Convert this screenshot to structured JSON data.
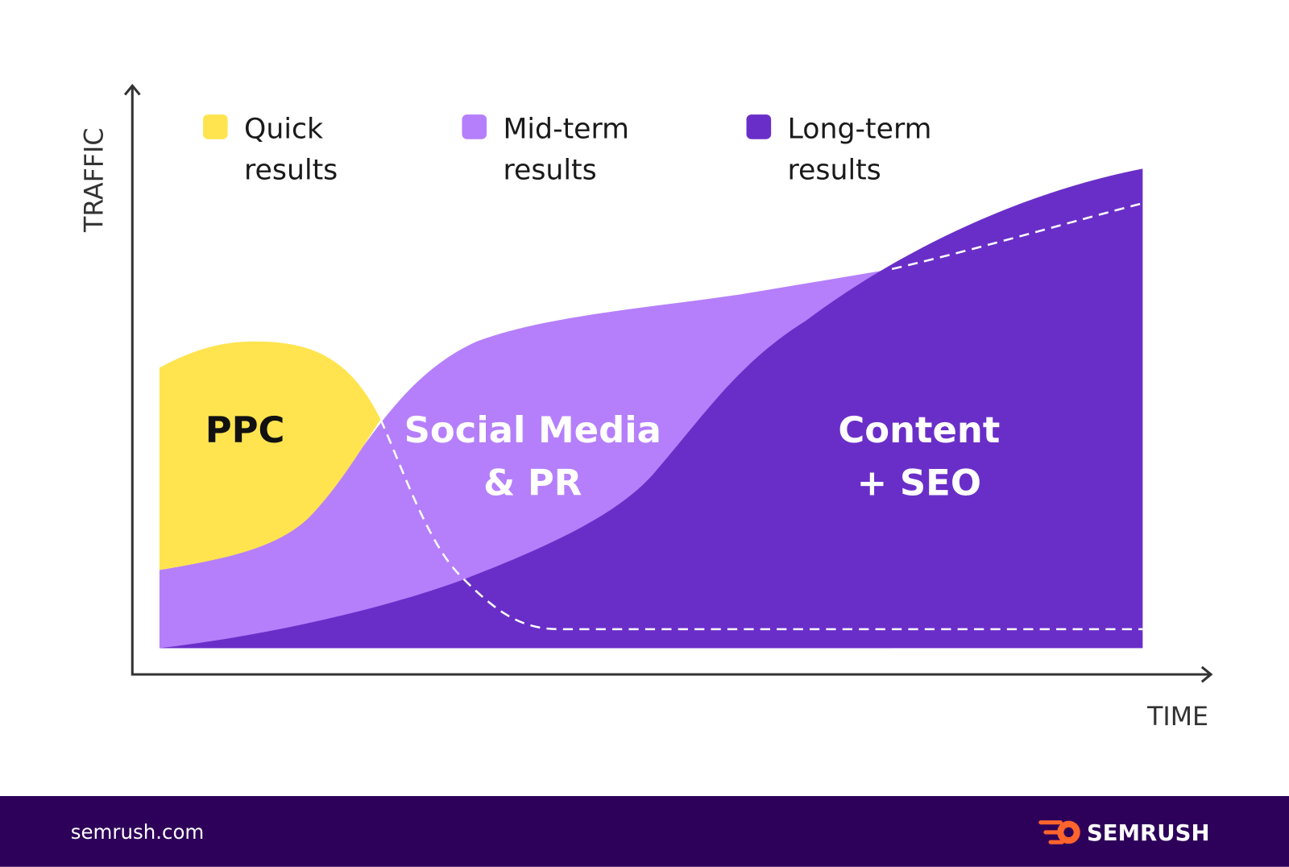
{
  "axes": {
    "y_label": "TRAFFIC",
    "x_label": "TIME"
  },
  "legend": [
    {
      "lines": [
        "Quick",
        "results"
      ]
    },
    {
      "lines": [
        "Mid-term",
        "results"
      ]
    },
    {
      "lines": [
        "Long-term",
        "results"
      ]
    }
  ],
  "areas": [
    {
      "lines": [
        "PPC"
      ]
    },
    {
      "lines": [
        "Social Media",
        "& PR"
      ]
    },
    {
      "lines": [
        "Content",
        "+ SEO"
      ]
    }
  ],
  "footer": {
    "site": "semrush.com",
    "brand": "SEMRUSH"
  }
}
